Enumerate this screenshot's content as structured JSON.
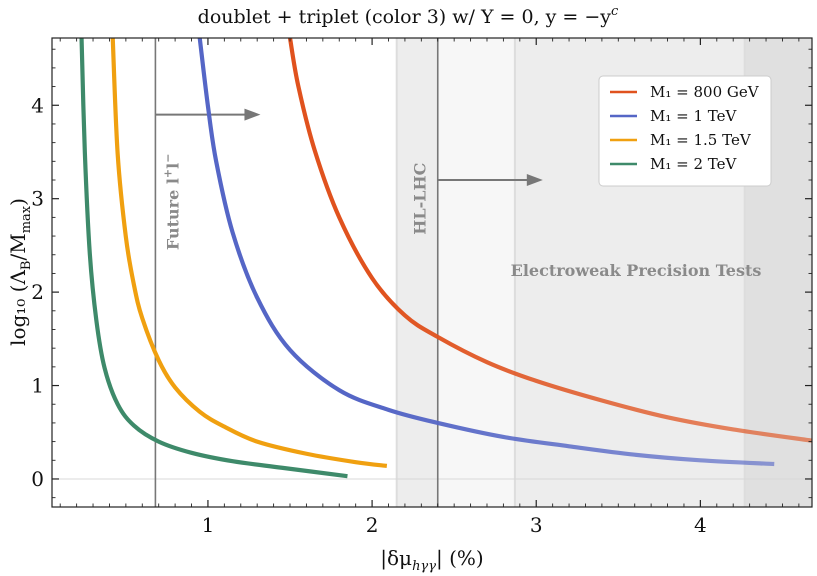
{
  "chart_data": {
    "type": "line",
    "title": "doublet + triplet (color 3) w/ Y = 0,  y = −y",
    "title_superscript": "c",
    "xlabel": "|δμ",
    "xlabel_subscript": "hγγ",
    "xlabel_suffix": "| (%)",
    "ylabel": "log₁₀ (Λ",
    "ylabel_sub_b": "B",
    "ylabel_mid": "/M",
    "ylabel_sub_max": "max",
    "ylabel_end": ")",
    "xlim": [
      0.05,
      4.68
    ],
    "ylim": [
      -0.3,
      4.72
    ],
    "xticks": [
      1,
      2,
      3,
      4
    ],
    "xtick_labels": [
      "1",
      "2",
      "3",
      "4"
    ],
    "yticks": [
      0,
      1,
      2,
      3,
      4
    ],
    "ytick_labels": [
      "0",
      "1",
      "2",
      "3",
      "4"
    ],
    "grid": false,
    "legend_position": "top-right",
    "series": [
      {
        "name": "M₁ = 800 GeV",
        "color": "#e0521e",
        "fade": true,
        "x": [
          1.5,
          1.55,
          1.65,
          1.8,
          2.0,
          2.2,
          2.4,
          2.7,
          3.0,
          3.4,
          3.8,
          4.2,
          4.68
        ],
        "y": [
          4.72,
          4.21,
          3.52,
          2.8,
          2.15,
          1.75,
          1.52,
          1.25,
          1.05,
          0.84,
          0.66,
          0.53,
          0.41
        ]
      },
      {
        "name": "M₁ = 1 TeV",
        "color": "#5566c6",
        "fade": true,
        "x": [
          0.95,
          1.0,
          1.05,
          1.15,
          1.3,
          1.5,
          1.8,
          2.1,
          2.4,
          2.8,
          3.2,
          3.6,
          4.0,
          4.45
        ],
        "y": [
          4.72,
          3.99,
          3.4,
          2.64,
          1.94,
          1.38,
          0.95,
          0.74,
          0.6,
          0.45,
          0.35,
          0.26,
          0.2,
          0.16
        ]
      },
      {
        "name": "M₁ = 1.5 TeV",
        "color": "#f0a010",
        "fade": false,
        "x": [
          0.42,
          0.45,
          0.5,
          0.55,
          0.6,
          0.7,
          0.8,
          0.95,
          1.1,
          1.3,
          1.6,
          1.9,
          2.09
        ],
        "y": [
          4.72,
          3.48,
          2.59,
          2.07,
          1.72,
          1.27,
          0.98,
          0.72,
          0.56,
          0.4,
          0.27,
          0.18,
          0.14
        ]
      },
      {
        "name": "M₁ = 2 TeV",
        "color": "#3e8a6a",
        "fade": false,
        "x": [
          0.23,
          0.25,
          0.28,
          0.32,
          0.37,
          0.45,
          0.55,
          0.7,
          0.9,
          1.15,
          1.45,
          1.85
        ],
        "y": [
          4.72,
          3.5,
          2.42,
          1.7,
          1.19,
          0.8,
          0.57,
          0.4,
          0.28,
          0.19,
          0.12,
          0.03
        ]
      }
    ],
    "bounds": [
      {
        "name": "Future l⁺l⁻",
        "x": 0.68,
        "label": "Future l",
        "sup": "+",
        "label2": "l",
        "sup2": "−",
        "arrow_y": 3.9,
        "arrow_to": 1.32
      },
      {
        "name": "HL-LHC",
        "x": 2.4,
        "label": "HL-LHC",
        "arrow_y": 3.2,
        "arrow_to": 3.04
      }
    ],
    "shaded_regions": [
      {
        "x_from": 2.15,
        "x_to": 2.4,
        "opacity": 0.04
      },
      {
        "x_from": 2.15,
        "x_to": 4.68,
        "opacity": 0.03
      },
      {
        "x_from": 2.87,
        "x_to": 4.68,
        "opacity": 0.04
      },
      {
        "x_from": 4.27,
        "x_to": 4.68,
        "opacity": 0.05
      }
    ],
    "region_lines": [
      2.15,
      2.87,
      4.27
    ],
    "ewpt_label": "Electroweak Precision Tests"
  }
}
